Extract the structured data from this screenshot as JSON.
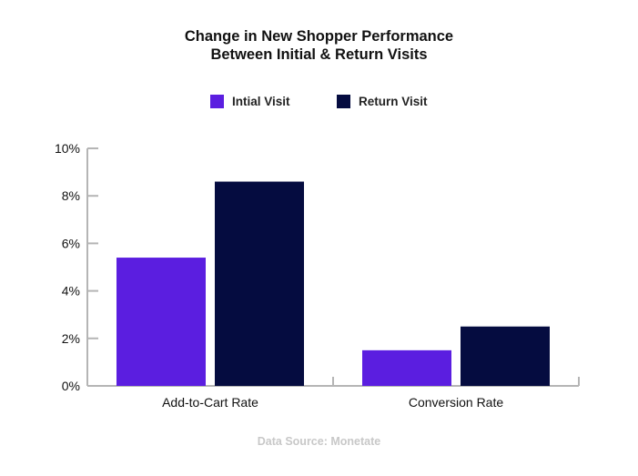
{
  "chart_data": {
    "type": "bar",
    "title_line1": "Change in New Shopper Performance",
    "title_line2": "Between Initial & Return Visits",
    "categories": [
      "Add-to-Cart Rate",
      "Conversion Rate"
    ],
    "series": [
      {
        "name": "Intial Visit",
        "color": "#5b1ee0",
        "values": [
          5.4,
          1.5
        ]
      },
      {
        "name": "Return Visit",
        "color": "#050c40",
        "values": [
          8.6,
          2.5
        ]
      }
    ],
    "yticks": [
      "0%",
      "2%",
      "4%",
      "6%",
      "8%",
      "10%"
    ],
    "ylim": [
      0,
      10
    ],
    "grid": false,
    "legend_position": "top-center",
    "source": "Data Source: Monetate"
  }
}
